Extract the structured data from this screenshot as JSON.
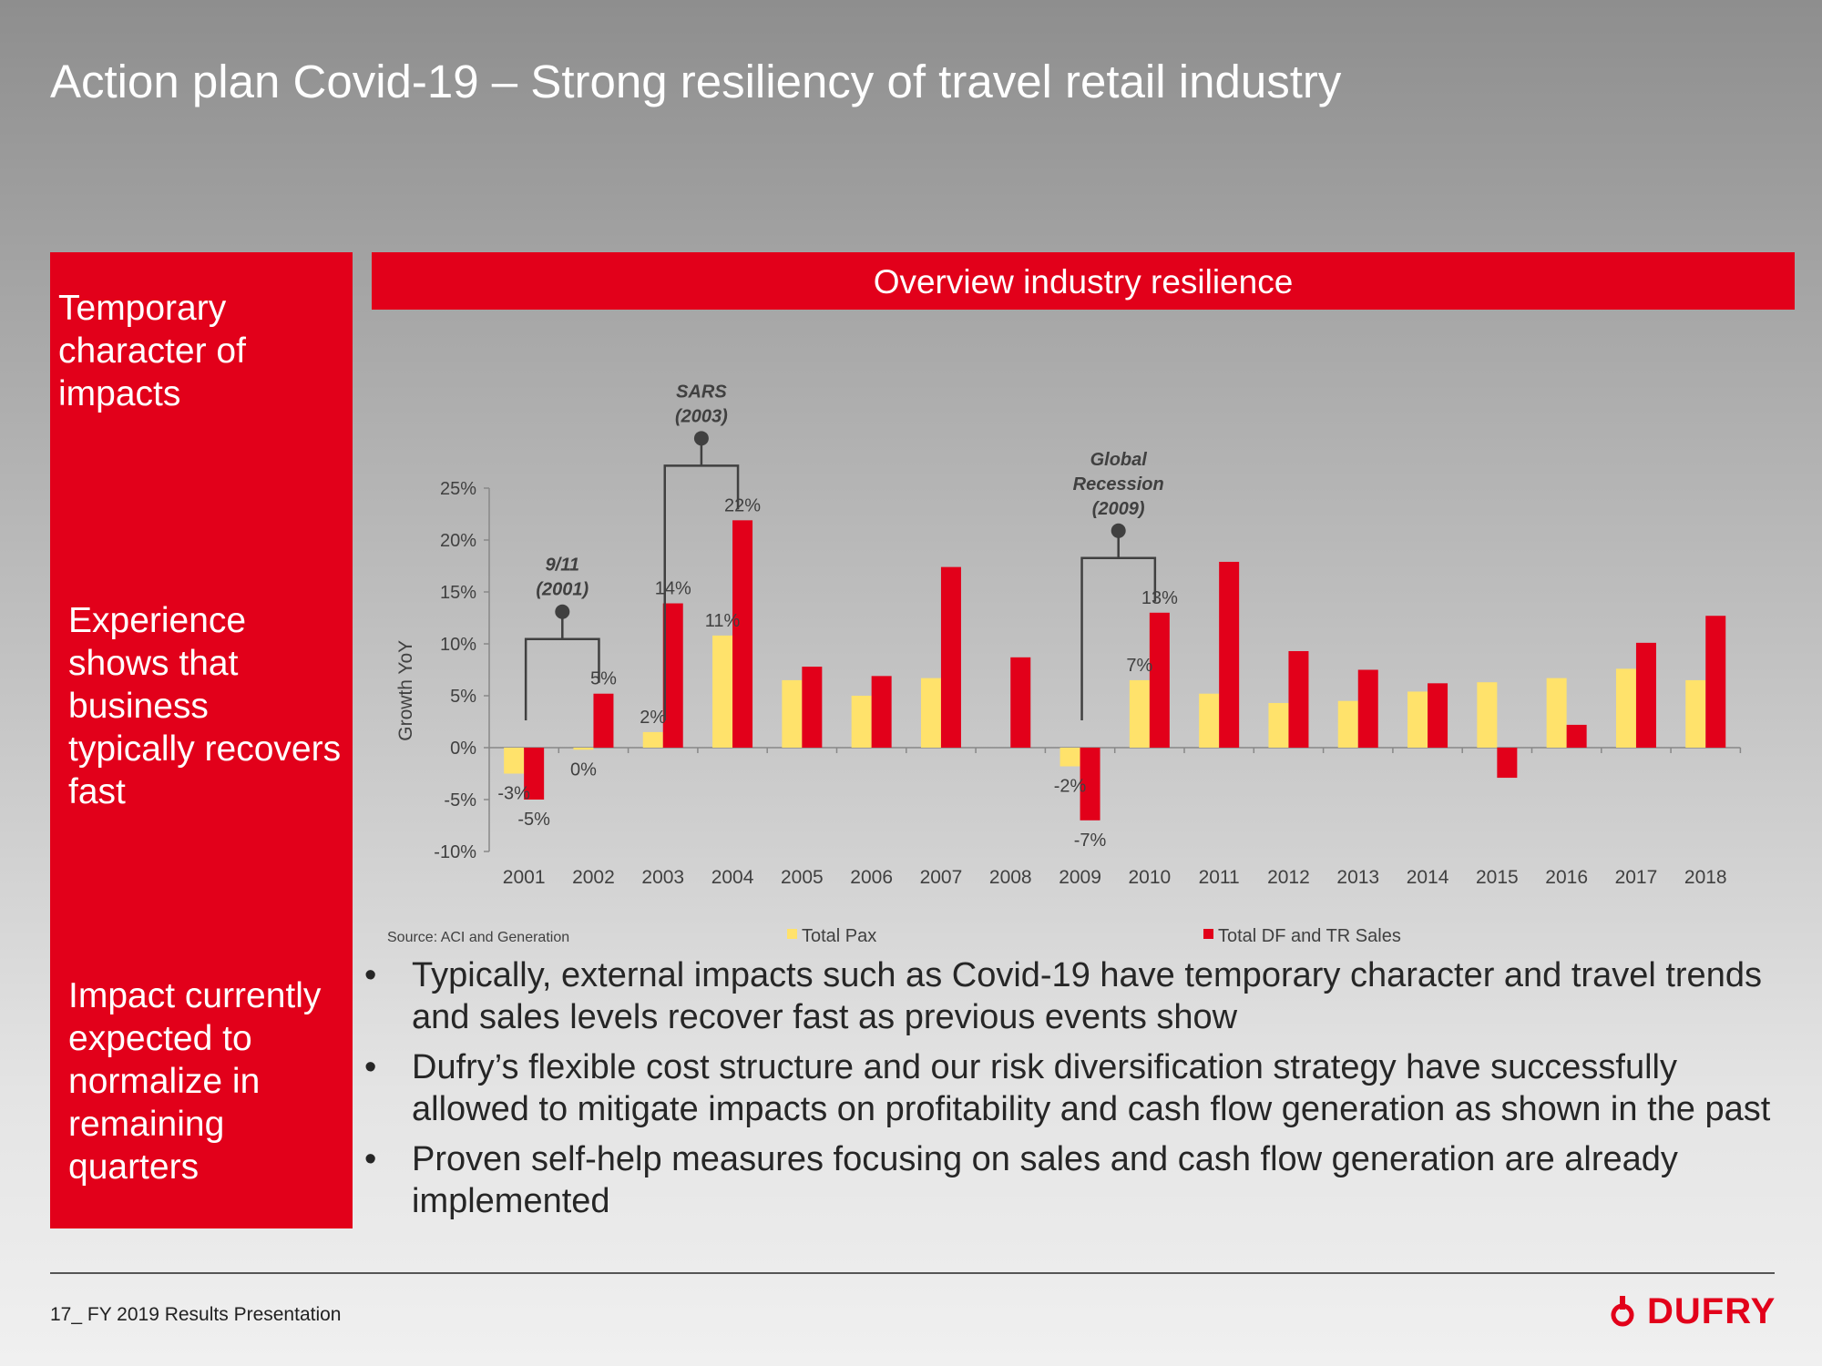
{
  "title": "Action plan Covid-19 – Strong resiliency of travel retail industry",
  "sidebar": {
    "block1": "Temporary character of impacts",
    "block2": "Experience shows that business typically recovers fast",
    "block3": "Impact currently expected to normalize in remaining quarters"
  },
  "banner": "Overview industry resilience",
  "chart_data": {
    "type": "bar",
    "ylabel": "Growth YoY",
    "ylim": [
      -0.1,
      0.25
    ],
    "yticks": [
      {
        "v": 0.25,
        "label": "25%"
      },
      {
        "v": 0.2,
        "label": "20%"
      },
      {
        "v": 0.15,
        "label": "15%"
      },
      {
        "v": 0.1,
        "label": "10%"
      },
      {
        "v": 0.05,
        "label": "5%"
      },
      {
        "v": 0.0,
        "label": "0%"
      },
      {
        "v": -0.05,
        "label": "-5%"
      },
      {
        "v": -0.1,
        "label": "-10%"
      }
    ],
    "categories": [
      "2001",
      "2002",
      "2003",
      "2004",
      "2005",
      "2006",
      "2007",
      "2008",
      "2009",
      "2010",
      "2011",
      "2012",
      "2013",
      "2014",
      "2015",
      "2016",
      "2017",
      "2018"
    ],
    "series": [
      {
        "name": "Total Pax",
        "color": "#ffe26b",
        "values": [
          -0.025,
          -0.002,
          0.015,
          0.108,
          0.065,
          0.05,
          0.067,
          0.0,
          -0.018,
          0.065,
          0.052,
          0.043,
          0.045,
          0.054,
          0.063,
          0.067,
          0.076,
          0.065
        ]
      },
      {
        "name": "Total DF and TR Sales",
        "color": "#e2001a",
        "values": [
          -0.05,
          0.052,
          0.139,
          0.219,
          0.078,
          0.069,
          0.174,
          0.087,
          -0.07,
          0.13,
          0.179,
          0.093,
          0.075,
          0.062,
          -0.029,
          0.022,
          0.101,
          0.127
        ]
      }
    ],
    "data_labels": [
      {
        "series": 0,
        "index": 0,
        "text": "-3%"
      },
      {
        "series": 1,
        "index": 0,
        "text": "-5%"
      },
      {
        "series": 0,
        "index": 1,
        "text": "0%"
      },
      {
        "series": 1,
        "index": 1,
        "text": "5%"
      },
      {
        "series": 0,
        "index": 2,
        "text": "2%"
      },
      {
        "series": 1,
        "index": 2,
        "text": "14%"
      },
      {
        "series": 0,
        "index": 3,
        "text": "11%"
      },
      {
        "series": 1,
        "index": 3,
        "text": "22%"
      },
      {
        "series": 0,
        "index": 8,
        "text": "-2%"
      },
      {
        "series": 1,
        "index": 8,
        "text": "-7%"
      },
      {
        "series": 0,
        "index": 9,
        "text": "7%"
      },
      {
        "series": 1,
        "index": 9,
        "text": "13%"
      }
    ],
    "annotations": [
      {
        "lines": [
          "9/11",
          "(2001)"
        ],
        "from": 0,
        "to": 1
      },
      {
        "lines": [
          "SARS",
          "(2003)"
        ],
        "from": 2,
        "to": 3
      },
      {
        "lines": [
          "Global",
          "Recession",
          "(2009)"
        ],
        "from": 8,
        "to": 9
      }
    ],
    "legend_position": "bottom",
    "source": "Source: ACI and Generation"
  },
  "bullets": [
    "Typically, external impacts such as Covid-19 have temporary character and travel trends and sales levels recover fast as previous events show",
    "Dufry’s flexible cost structure and our risk diversification strategy have successfully allowed to mitigate impacts on profitability and cash flow generation as shown in the past",
    "Proven self-help measures focusing on sales and cash flow generation are already implemented"
  ],
  "footer": "17_ FY 2019 Results Presentation",
  "logo": {
    "text": "DUFRY",
    "icon": "dufry-logo-icon",
    "color": "#e2001a"
  }
}
